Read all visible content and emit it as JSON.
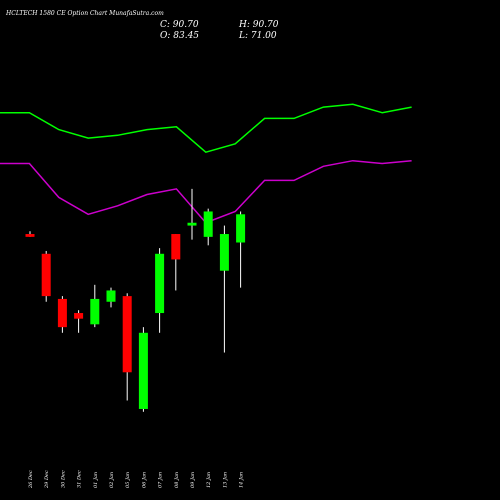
{
  "chart_data": {
    "type": "candlestick",
    "title": "HCLTECH 1580  CE Option  Chart MunafaSutra.com",
    "ohlc_labels": {
      "close": "C: 90.70",
      "open": "O: 83.45",
      "high": "H: 90.70",
      "low": "L: 71.00"
    },
    "candles": [
      {
        "date": "26 Dec",
        "open": 66.5,
        "high": 67.0,
        "low": 66.0,
        "close": 66.0,
        "color": "red"
      },
      {
        "date": "29 Dec",
        "open": 63.0,
        "high": 63.5,
        "low": 54.5,
        "close": 55.5,
        "color": "red"
      },
      {
        "date": "30 Dec",
        "open": 55.0,
        "high": 55.5,
        "low": 49.0,
        "close": 50.0,
        "color": "red"
      },
      {
        "date": "31 Dec",
        "open": 52.5,
        "high": 53.0,
        "low": 49.0,
        "close": 51.5,
        "color": "red"
      },
      {
        "date": "01 Jan",
        "open": 50.5,
        "high": 57.5,
        "low": 50.0,
        "close": 55.0,
        "color": "green"
      },
      {
        "date": "02 Jan",
        "open": 54.5,
        "high": 57.0,
        "low": 53.5,
        "close": 56.5,
        "color": "green"
      },
      {
        "date": "05 Jan",
        "open": 55.5,
        "high": 56.0,
        "low": 37.0,
        "close": 42.0,
        "color": "red"
      },
      {
        "date": "06 Jan",
        "open": 35.5,
        "high": 50.0,
        "low": 35.0,
        "close": 49.0,
        "color": "green"
      },
      {
        "date": "07 Jan",
        "open": 52.5,
        "high": 64.0,
        "low": 49.0,
        "close": 63.0,
        "color": "green"
      },
      {
        "date": "08 Jan",
        "open": 66.5,
        "high": 66.5,
        "low": 56.5,
        "close": 62.0,
        "color": "red"
      },
      {
        "date": "09 Jan",
        "open": 68.0,
        "high": 74.5,
        "low": 65.5,
        "close": 68.5,
        "color": "green"
      },
      {
        "date": "12 Jan",
        "open": 66.0,
        "high": 71.0,
        "low": 64.5,
        "close": 70.5,
        "color": "green"
      },
      {
        "date": "13 Jan",
        "open": 60.0,
        "high": 68.0,
        "low": 45.5,
        "close": 66.5,
        "color": "green"
      },
      {
        "date": "14 Jan",
        "open": 65.0,
        "high": 70.5,
        "low": 57.0,
        "close": 70.0,
        "color": "green"
      }
    ],
    "band_upper": {
      "color": "#00ff00",
      "values": [
        88.0,
        88.0,
        85.0,
        83.5,
        84.0,
        85.0,
        85.5,
        81.0,
        82.5,
        87.0,
        87.0,
        89.0,
        89.5,
        88.0,
        89.0
      ]
    },
    "band_lower": {
      "color": "#cc00cc",
      "values": [
        79.0,
        79.0,
        73.0,
        70.0,
        71.5,
        73.5,
        74.5,
        68.5,
        70.5,
        76.0,
        76.0,
        78.5,
        79.5,
        79.0,
        79.5
      ]
    },
    "band_x_positions": [
      0,
      1,
      2,
      3,
      4,
      5,
      6,
      7,
      8,
      9,
      10,
      11,
      12,
      13,
      14
    ],
    "ylim": [
      30,
      100
    ]
  }
}
